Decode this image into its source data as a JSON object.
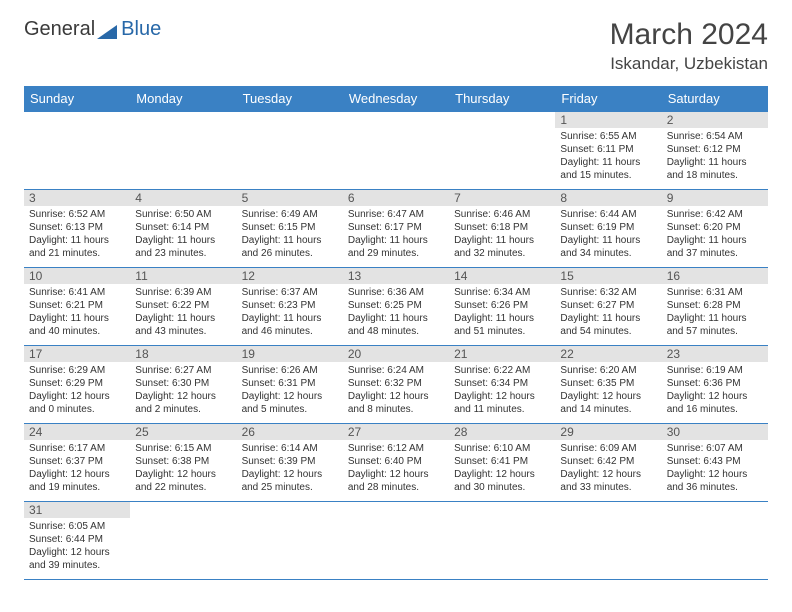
{
  "logo": {
    "general": "General",
    "blue": "Blue"
  },
  "title": "March 2024",
  "location": "Iskandar, Uzbekistan",
  "columns": [
    "Sunday",
    "Monday",
    "Tuesday",
    "Wednesday",
    "Thursday",
    "Friday",
    "Saturday"
  ],
  "header_bg": "#3a81c4",
  "daynum_bg": "#e3e3e3",
  "cell_border": "#3a81c4",
  "days": [
    {
      "n": 1,
      "sr": "6:55 AM",
      "ss": "6:11 PM",
      "dl": "11 hours and 15 minutes."
    },
    {
      "n": 2,
      "sr": "6:54 AM",
      "ss": "6:12 PM",
      "dl": "11 hours and 18 minutes."
    },
    {
      "n": 3,
      "sr": "6:52 AM",
      "ss": "6:13 PM",
      "dl": "11 hours and 21 minutes."
    },
    {
      "n": 4,
      "sr": "6:50 AM",
      "ss": "6:14 PM",
      "dl": "11 hours and 23 minutes."
    },
    {
      "n": 5,
      "sr": "6:49 AM",
      "ss": "6:15 PM",
      "dl": "11 hours and 26 minutes."
    },
    {
      "n": 6,
      "sr": "6:47 AM",
      "ss": "6:17 PM",
      "dl": "11 hours and 29 minutes."
    },
    {
      "n": 7,
      "sr": "6:46 AM",
      "ss": "6:18 PM",
      "dl": "11 hours and 32 minutes."
    },
    {
      "n": 8,
      "sr": "6:44 AM",
      "ss": "6:19 PM",
      "dl": "11 hours and 34 minutes."
    },
    {
      "n": 9,
      "sr": "6:42 AM",
      "ss": "6:20 PM",
      "dl": "11 hours and 37 minutes."
    },
    {
      "n": 10,
      "sr": "6:41 AM",
      "ss": "6:21 PM",
      "dl": "11 hours and 40 minutes."
    },
    {
      "n": 11,
      "sr": "6:39 AM",
      "ss": "6:22 PM",
      "dl": "11 hours and 43 minutes."
    },
    {
      "n": 12,
      "sr": "6:37 AM",
      "ss": "6:23 PM",
      "dl": "11 hours and 46 minutes."
    },
    {
      "n": 13,
      "sr": "6:36 AM",
      "ss": "6:25 PM",
      "dl": "11 hours and 48 minutes."
    },
    {
      "n": 14,
      "sr": "6:34 AM",
      "ss": "6:26 PM",
      "dl": "11 hours and 51 minutes."
    },
    {
      "n": 15,
      "sr": "6:32 AM",
      "ss": "6:27 PM",
      "dl": "11 hours and 54 minutes."
    },
    {
      "n": 16,
      "sr": "6:31 AM",
      "ss": "6:28 PM",
      "dl": "11 hours and 57 minutes."
    },
    {
      "n": 17,
      "sr": "6:29 AM",
      "ss": "6:29 PM",
      "dl": "12 hours and 0 minutes."
    },
    {
      "n": 18,
      "sr": "6:27 AM",
      "ss": "6:30 PM",
      "dl": "12 hours and 2 minutes."
    },
    {
      "n": 19,
      "sr": "6:26 AM",
      "ss": "6:31 PM",
      "dl": "12 hours and 5 minutes."
    },
    {
      "n": 20,
      "sr": "6:24 AM",
      "ss": "6:32 PM",
      "dl": "12 hours and 8 minutes."
    },
    {
      "n": 21,
      "sr": "6:22 AM",
      "ss": "6:34 PM",
      "dl": "12 hours and 11 minutes."
    },
    {
      "n": 22,
      "sr": "6:20 AM",
      "ss": "6:35 PM",
      "dl": "12 hours and 14 minutes."
    },
    {
      "n": 23,
      "sr": "6:19 AM",
      "ss": "6:36 PM",
      "dl": "12 hours and 16 minutes."
    },
    {
      "n": 24,
      "sr": "6:17 AM",
      "ss": "6:37 PM",
      "dl": "12 hours and 19 minutes."
    },
    {
      "n": 25,
      "sr": "6:15 AM",
      "ss": "6:38 PM",
      "dl": "12 hours and 22 minutes."
    },
    {
      "n": 26,
      "sr": "6:14 AM",
      "ss": "6:39 PM",
      "dl": "12 hours and 25 minutes."
    },
    {
      "n": 27,
      "sr": "6:12 AM",
      "ss": "6:40 PM",
      "dl": "12 hours and 28 minutes."
    },
    {
      "n": 28,
      "sr": "6:10 AM",
      "ss": "6:41 PM",
      "dl": "12 hours and 30 minutes."
    },
    {
      "n": 29,
      "sr": "6:09 AM",
      "ss": "6:42 PM",
      "dl": "12 hours and 33 minutes."
    },
    {
      "n": 30,
      "sr": "6:07 AM",
      "ss": "6:43 PM",
      "dl": "12 hours and 36 minutes."
    },
    {
      "n": 31,
      "sr": "6:05 AM",
      "ss": "6:44 PM",
      "dl": "12 hours and 39 minutes."
    }
  ],
  "first_weekday": 5,
  "labels": {
    "sunrise": "Sunrise:",
    "sunset": "Sunset:",
    "daylight": "Daylight:"
  }
}
